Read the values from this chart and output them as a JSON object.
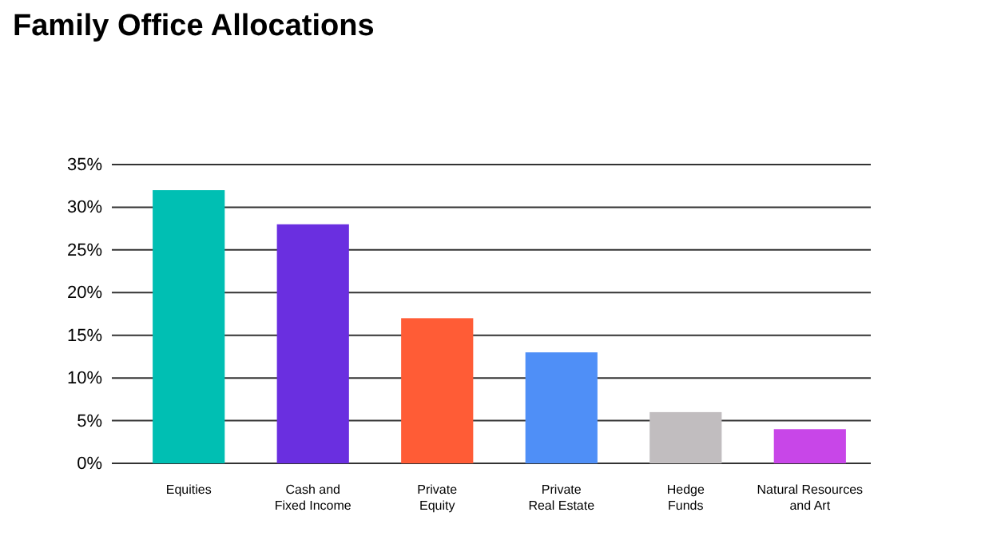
{
  "chart_data": {
    "type": "bar",
    "title": "Family Office Allocations",
    "categories": [
      "Equities",
      "Cash and\nFixed Income",
      "Private\nEquity",
      "Private\nReal Estate",
      "Hedge\nFunds",
      "Natural Resources\nand Art"
    ],
    "values": [
      32,
      28,
      17,
      13,
      6,
      4
    ],
    "colors": [
      "#00bfb3",
      "#6a2fe0",
      "#ff5c36",
      "#4f8ff7",
      "#c1bdbf",
      "#c846e8"
    ],
    "ylim": [
      0,
      35
    ],
    "yticks": [
      {
        "value": 0,
        "label": "0%"
      },
      {
        "value": 5,
        "label": "5%"
      },
      {
        "value": 10,
        "label": "10%"
      },
      {
        "value": 15,
        "label": "15%"
      },
      {
        "value": 20,
        "label": "20%"
      },
      {
        "value": 25,
        "label": "25%"
      },
      {
        "value": 30,
        "label": "30%"
      },
      {
        "value": 35,
        "label": "35%"
      }
    ],
    "grid": "y"
  }
}
